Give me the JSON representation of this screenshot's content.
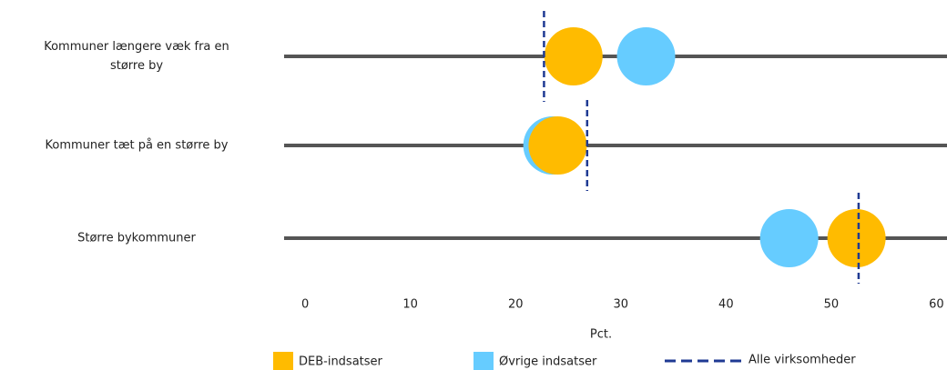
{
  "chart_data": {
    "type": "dot",
    "categories": [
      "Kommuner længere væk fra en større by",
      "Kommuner tæt på en større by",
      "Større bykommuner"
    ],
    "series": [
      {
        "name": "Øvrige indsatser",
        "color": "#66ccff",
        "marker": "circle",
        "values": [
          32.4,
          23.5,
          46
        ]
      },
      {
        "name": "DEB-indsatser",
        "color": "#ffbb00",
        "marker": "circle",
        "values": [
          25.5,
          24,
          52.4
        ]
      },
      {
        "name": "Alle virksomheder",
        "color": "#1f3a93",
        "marker": "dashed-line",
        "values": [
          22.7,
          26.8,
          52.6
        ]
      }
    ],
    "xlabel": "Pct.",
    "xlim": [
      -2,
      61
    ],
    "xticks": [
      0,
      10,
      20,
      30,
      40,
      50,
      60
    ],
    "grid": false
  }
}
